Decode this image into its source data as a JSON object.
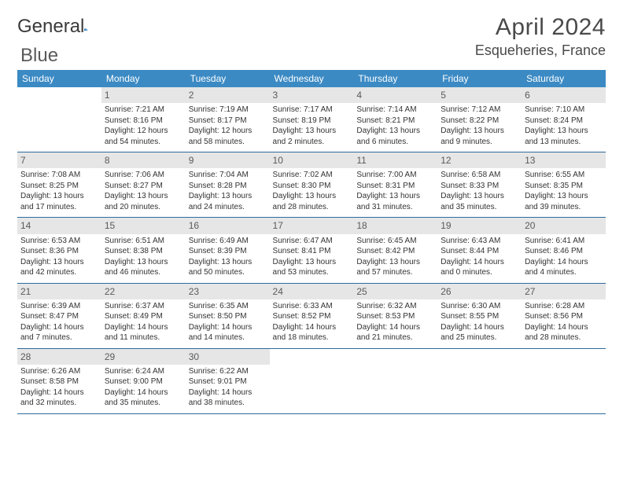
{
  "header": {
    "logo_text_a": "General",
    "logo_text_b": "Blue",
    "month_year": "April 2024",
    "location": "Esqueheries, France"
  },
  "colors": {
    "header_bg": "#3b8ac4",
    "header_text": "#ffffff",
    "daynum_bg": "#e6e6e6",
    "daynum_text": "#5a5a5a",
    "row_border": "#2d6b9e",
    "body_text": "#333333",
    "page_bg": "#ffffff",
    "logo_accent": "#1a66a8"
  },
  "weekdays": [
    "Sunday",
    "Monday",
    "Tuesday",
    "Wednesday",
    "Thursday",
    "Friday",
    "Saturday"
  ],
  "weeks": [
    [
      {
        "empty": true
      },
      {
        "day": "1",
        "sunrise": "Sunrise: 7:21 AM",
        "sunset": "Sunset: 8:16 PM",
        "daylight1": "Daylight: 12 hours",
        "daylight2": "and 54 minutes."
      },
      {
        "day": "2",
        "sunrise": "Sunrise: 7:19 AM",
        "sunset": "Sunset: 8:17 PM",
        "daylight1": "Daylight: 12 hours",
        "daylight2": "and 58 minutes."
      },
      {
        "day": "3",
        "sunrise": "Sunrise: 7:17 AM",
        "sunset": "Sunset: 8:19 PM",
        "daylight1": "Daylight: 13 hours",
        "daylight2": "and 2 minutes."
      },
      {
        "day": "4",
        "sunrise": "Sunrise: 7:14 AM",
        "sunset": "Sunset: 8:21 PM",
        "daylight1": "Daylight: 13 hours",
        "daylight2": "and 6 minutes."
      },
      {
        "day": "5",
        "sunrise": "Sunrise: 7:12 AM",
        "sunset": "Sunset: 8:22 PM",
        "daylight1": "Daylight: 13 hours",
        "daylight2": "and 9 minutes."
      },
      {
        "day": "6",
        "sunrise": "Sunrise: 7:10 AM",
        "sunset": "Sunset: 8:24 PM",
        "daylight1": "Daylight: 13 hours",
        "daylight2": "and 13 minutes."
      }
    ],
    [
      {
        "day": "7",
        "sunrise": "Sunrise: 7:08 AM",
        "sunset": "Sunset: 8:25 PM",
        "daylight1": "Daylight: 13 hours",
        "daylight2": "and 17 minutes."
      },
      {
        "day": "8",
        "sunrise": "Sunrise: 7:06 AM",
        "sunset": "Sunset: 8:27 PM",
        "daylight1": "Daylight: 13 hours",
        "daylight2": "and 20 minutes."
      },
      {
        "day": "9",
        "sunrise": "Sunrise: 7:04 AM",
        "sunset": "Sunset: 8:28 PM",
        "daylight1": "Daylight: 13 hours",
        "daylight2": "and 24 minutes."
      },
      {
        "day": "10",
        "sunrise": "Sunrise: 7:02 AM",
        "sunset": "Sunset: 8:30 PM",
        "daylight1": "Daylight: 13 hours",
        "daylight2": "and 28 minutes."
      },
      {
        "day": "11",
        "sunrise": "Sunrise: 7:00 AM",
        "sunset": "Sunset: 8:31 PM",
        "daylight1": "Daylight: 13 hours",
        "daylight2": "and 31 minutes."
      },
      {
        "day": "12",
        "sunrise": "Sunrise: 6:58 AM",
        "sunset": "Sunset: 8:33 PM",
        "daylight1": "Daylight: 13 hours",
        "daylight2": "and 35 minutes."
      },
      {
        "day": "13",
        "sunrise": "Sunrise: 6:55 AM",
        "sunset": "Sunset: 8:35 PM",
        "daylight1": "Daylight: 13 hours",
        "daylight2": "and 39 minutes."
      }
    ],
    [
      {
        "day": "14",
        "sunrise": "Sunrise: 6:53 AM",
        "sunset": "Sunset: 8:36 PM",
        "daylight1": "Daylight: 13 hours",
        "daylight2": "and 42 minutes."
      },
      {
        "day": "15",
        "sunrise": "Sunrise: 6:51 AM",
        "sunset": "Sunset: 8:38 PM",
        "daylight1": "Daylight: 13 hours",
        "daylight2": "and 46 minutes."
      },
      {
        "day": "16",
        "sunrise": "Sunrise: 6:49 AM",
        "sunset": "Sunset: 8:39 PM",
        "daylight1": "Daylight: 13 hours",
        "daylight2": "and 50 minutes."
      },
      {
        "day": "17",
        "sunrise": "Sunrise: 6:47 AM",
        "sunset": "Sunset: 8:41 PM",
        "daylight1": "Daylight: 13 hours",
        "daylight2": "and 53 minutes."
      },
      {
        "day": "18",
        "sunrise": "Sunrise: 6:45 AM",
        "sunset": "Sunset: 8:42 PM",
        "daylight1": "Daylight: 13 hours",
        "daylight2": "and 57 minutes."
      },
      {
        "day": "19",
        "sunrise": "Sunrise: 6:43 AM",
        "sunset": "Sunset: 8:44 PM",
        "daylight1": "Daylight: 14 hours",
        "daylight2": "and 0 minutes."
      },
      {
        "day": "20",
        "sunrise": "Sunrise: 6:41 AM",
        "sunset": "Sunset: 8:46 PM",
        "daylight1": "Daylight: 14 hours",
        "daylight2": "and 4 minutes."
      }
    ],
    [
      {
        "day": "21",
        "sunrise": "Sunrise: 6:39 AM",
        "sunset": "Sunset: 8:47 PM",
        "daylight1": "Daylight: 14 hours",
        "daylight2": "and 7 minutes."
      },
      {
        "day": "22",
        "sunrise": "Sunrise: 6:37 AM",
        "sunset": "Sunset: 8:49 PM",
        "daylight1": "Daylight: 14 hours",
        "daylight2": "and 11 minutes."
      },
      {
        "day": "23",
        "sunrise": "Sunrise: 6:35 AM",
        "sunset": "Sunset: 8:50 PM",
        "daylight1": "Daylight: 14 hours",
        "daylight2": "and 14 minutes."
      },
      {
        "day": "24",
        "sunrise": "Sunrise: 6:33 AM",
        "sunset": "Sunset: 8:52 PM",
        "daylight1": "Daylight: 14 hours",
        "daylight2": "and 18 minutes."
      },
      {
        "day": "25",
        "sunrise": "Sunrise: 6:32 AM",
        "sunset": "Sunset: 8:53 PM",
        "daylight1": "Daylight: 14 hours",
        "daylight2": "and 21 minutes."
      },
      {
        "day": "26",
        "sunrise": "Sunrise: 6:30 AM",
        "sunset": "Sunset: 8:55 PM",
        "daylight1": "Daylight: 14 hours",
        "daylight2": "and 25 minutes."
      },
      {
        "day": "27",
        "sunrise": "Sunrise: 6:28 AM",
        "sunset": "Sunset: 8:56 PM",
        "daylight1": "Daylight: 14 hours",
        "daylight2": "and 28 minutes."
      }
    ],
    [
      {
        "day": "28",
        "sunrise": "Sunrise: 6:26 AM",
        "sunset": "Sunset: 8:58 PM",
        "daylight1": "Daylight: 14 hours",
        "daylight2": "and 32 minutes."
      },
      {
        "day": "29",
        "sunrise": "Sunrise: 6:24 AM",
        "sunset": "Sunset: 9:00 PM",
        "daylight1": "Daylight: 14 hours",
        "daylight2": "and 35 minutes."
      },
      {
        "day": "30",
        "sunrise": "Sunrise: 6:22 AM",
        "sunset": "Sunset: 9:01 PM",
        "daylight1": "Daylight: 14 hours",
        "daylight2": "and 38 minutes."
      },
      {
        "empty": true
      },
      {
        "empty": true
      },
      {
        "empty": true
      },
      {
        "empty": true
      }
    ]
  ]
}
